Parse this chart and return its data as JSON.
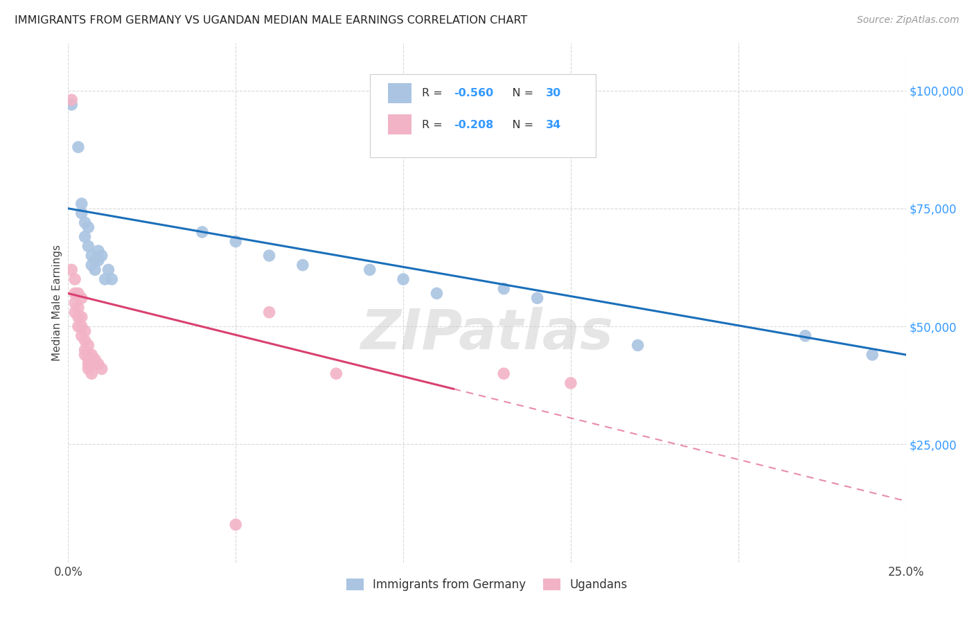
{
  "title": "IMMIGRANTS FROM GERMANY VS UGANDAN MEDIAN MALE EARNINGS CORRELATION CHART",
  "source": "Source: ZipAtlas.com",
  "ylabel": "Median Male Earnings",
  "xlim": [
    0.0,
    0.25
  ],
  "ylim": [
    0,
    110000
  ],
  "yticks": [
    0,
    25000,
    50000,
    75000,
    100000
  ],
  "ytick_labels": [
    "",
    "$25,000",
    "$50,000",
    "$75,000",
    "$100,000"
  ],
  "xticks": [
    0.0,
    0.05,
    0.1,
    0.15,
    0.2,
    0.25
  ],
  "xtick_labels": [
    "0.0%",
    "",
    "",
    "",
    "",
    "25.0%"
  ],
  "background_color": "#ffffff",
  "grid_color": "#d8d8d8",
  "watermark": "ZIPatlas",
  "germany_color": "#aac4e2",
  "germany_line_color": "#1a6fba",
  "germany_R": -0.56,
  "germany_N": 30,
  "germany_scatter": [
    [
      0.001,
      97000
    ],
    [
      0.003,
      88000
    ],
    [
      0.004,
      76000
    ],
    [
      0.004,
      74000
    ],
    [
      0.005,
      72000
    ],
    [
      0.005,
      69000
    ],
    [
      0.006,
      71000
    ],
    [
      0.006,
      67000
    ],
    [
      0.007,
      65000
    ],
    [
      0.007,
      63000
    ],
    [
      0.008,
      64000
    ],
    [
      0.008,
      62000
    ],
    [
      0.009,
      66000
    ],
    [
      0.009,
      64000
    ],
    [
      0.01,
      65000
    ],
    [
      0.011,
      60000
    ],
    [
      0.012,
      62000
    ],
    [
      0.013,
      60000
    ],
    [
      0.04,
      70000
    ],
    [
      0.05,
      68000
    ],
    [
      0.06,
      65000
    ],
    [
      0.07,
      63000
    ],
    [
      0.09,
      62000
    ],
    [
      0.1,
      60000
    ],
    [
      0.11,
      57000
    ],
    [
      0.13,
      58000
    ],
    [
      0.14,
      56000
    ],
    [
      0.17,
      46000
    ],
    [
      0.22,
      48000
    ],
    [
      0.24,
      44000
    ]
  ],
  "germany_line_x": [
    0.0,
    0.25
  ],
  "germany_line_y": [
    75000,
    44000
  ],
  "uganda_color": "#f2b3c6",
  "uganda_line_color": "#d94070",
  "uganda_R": -0.208,
  "uganda_N": 34,
  "uganda_scatter": [
    [
      0.001,
      98000
    ],
    [
      0.001,
      62000
    ],
    [
      0.002,
      60000
    ],
    [
      0.002,
      57000
    ],
    [
      0.002,
      55000
    ],
    [
      0.002,
      53000
    ],
    [
      0.003,
      57000
    ],
    [
      0.003,
      54000
    ],
    [
      0.003,
      52000
    ],
    [
      0.003,
      50000
    ],
    [
      0.004,
      56000
    ],
    [
      0.004,
      52000
    ],
    [
      0.004,
      50000
    ],
    [
      0.004,
      48000
    ],
    [
      0.005,
      49000
    ],
    [
      0.005,
      47000
    ],
    [
      0.005,
      45000
    ],
    [
      0.005,
      44000
    ],
    [
      0.006,
      46000
    ],
    [
      0.006,
      44000
    ],
    [
      0.006,
      43000
    ],
    [
      0.006,
      42000
    ],
    [
      0.006,
      41000
    ],
    [
      0.007,
      44000
    ],
    [
      0.007,
      42000
    ],
    [
      0.007,
      40000
    ],
    [
      0.008,
      43000
    ],
    [
      0.009,
      42000
    ],
    [
      0.01,
      41000
    ],
    [
      0.06,
      53000
    ],
    [
      0.08,
      40000
    ],
    [
      0.13,
      40000
    ],
    [
      0.15,
      38000
    ],
    [
      0.05,
      8000
    ]
  ],
  "uganda_line_x": [
    0.0,
    0.25
  ],
  "uganda_line_y": [
    57000,
    13000
  ],
  "uganda_line_solid_end": 0.115,
  "legend_germany_label_r": "-0.560",
  "legend_germany_label_n": "30",
  "legend_uganda_label_r": "-0.208",
  "legend_uganda_label_n": "34",
  "bottom_legend_germany": "Immigrants from Germany",
  "bottom_legend_uganda": "Ugandans"
}
